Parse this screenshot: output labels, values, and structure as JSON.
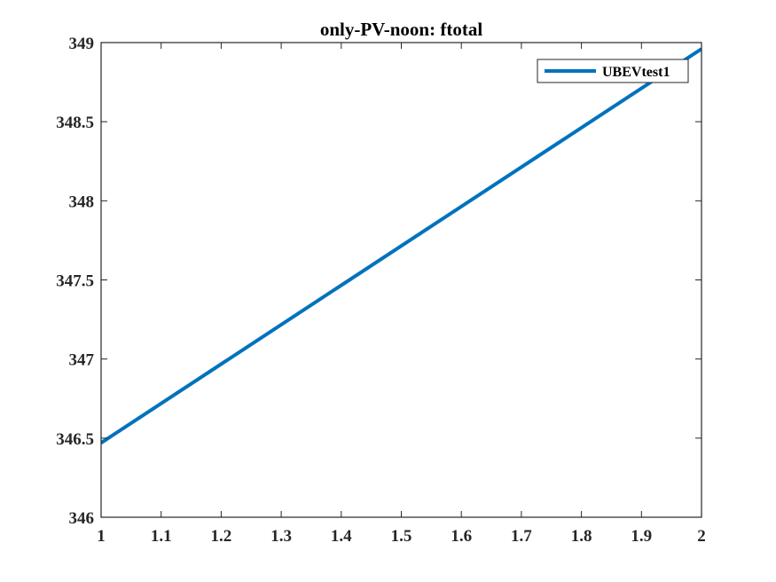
{
  "chart_data": {
    "type": "line",
    "title": "only-PV-noon: ftotal",
    "xlabel": "",
    "ylabel": "",
    "xlim": [
      1,
      2
    ],
    "ylim": [
      346,
      349
    ],
    "xticks": [
      1,
      1.1,
      1.2,
      1.3,
      1.4,
      1.5,
      1.6,
      1.7,
      1.8,
      1.9,
      2
    ],
    "xtick_labels": [
      "1",
      "1.1",
      "1.2",
      "1.3",
      "1.4",
      "1.5",
      "1.6",
      "1.7",
      "1.8",
      "1.9",
      "2"
    ],
    "yticks": [
      346,
      346.5,
      347,
      347.5,
      348,
      348.5,
      349
    ],
    "ytick_labels": [
      "346",
      "346.5",
      "347",
      "347.5",
      "348",
      "348.5",
      "349"
    ],
    "grid": false,
    "legend_position": "top-right",
    "series": [
      {
        "name": "UBEVtest1",
        "color": "#0072BD",
        "x": [
          1,
          2
        ],
        "y": [
          346.47,
          348.96
        ]
      }
    ]
  }
}
